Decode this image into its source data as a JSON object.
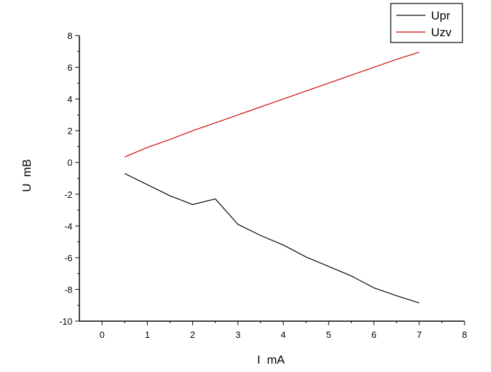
{
  "chart_data": {
    "type": "line",
    "title": "",
    "xlabel": "I  mA",
    "ylabel": "U  mB",
    "xlim": [
      -0.5,
      8
    ],
    "ylim": [
      -10,
      8
    ],
    "xticks": [
      0,
      1,
      2,
      3,
      4,
      5,
      6,
      7,
      8
    ],
    "yticks": [
      -10,
      -8,
      -6,
      -4,
      -2,
      0,
      2,
      4,
      6,
      8
    ],
    "grid": false,
    "legend_position": "top-right",
    "series": [
      {
        "name": "Upr",
        "color": "#000000",
        "x": [
          0.5,
          1.0,
          1.5,
          2.0,
          2.5,
          3.0,
          3.5,
          4.0,
          4.5,
          5.0,
          5.5,
          6.0,
          6.5,
          7.0
        ],
        "y": [
          -0.7,
          -1.4,
          -2.1,
          -2.65,
          -2.3,
          -3.9,
          -4.6,
          -5.2,
          -5.95,
          -6.55,
          -7.15,
          -7.9,
          -8.4,
          -8.85
        ]
      },
      {
        "name": "Uzv",
        "color": "#cc0000",
        "x": [
          0.5,
          1.0,
          1.5,
          2.0,
          2.5,
          3.0,
          3.5,
          4.0,
          4.5,
          5.0,
          5.5,
          6.0,
          6.5,
          7.0
        ],
        "y": [
          0.35,
          0.95,
          1.45,
          2.0,
          2.5,
          3.0,
          3.5,
          4.0,
          4.5,
          5.0,
          5.5,
          6.0,
          6.5,
          6.95
        ]
      }
    ]
  }
}
